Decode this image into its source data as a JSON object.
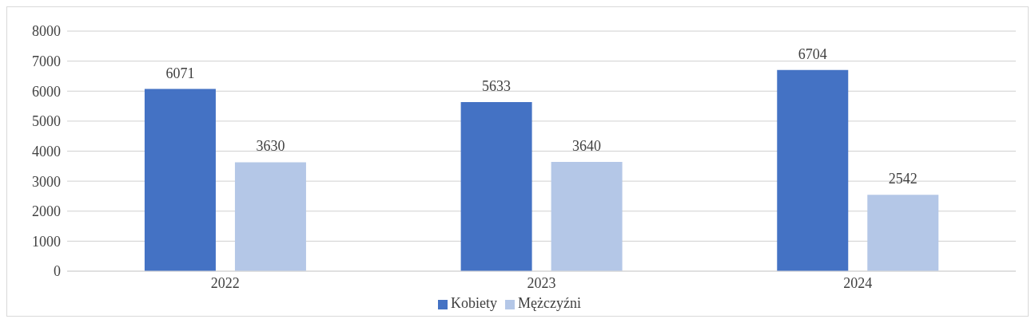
{
  "chart_data": {
    "type": "bar",
    "categories": [
      "2022",
      "2023",
      "2024"
    ],
    "series": [
      {
        "name": "Kobiety",
        "color": "#4472c4",
        "values": [
          6071,
          5633,
          6704
        ]
      },
      {
        "name": "Mężczyźni",
        "color": "#b4c7e7",
        "values": [
          3630,
          3640,
          2542
        ]
      }
    ],
    "ylim": [
      0,
      8000
    ],
    "yticks": [
      0,
      1000,
      2000,
      3000,
      4000,
      5000,
      6000,
      7000,
      8000
    ],
    "grid": "y",
    "legend": "bottom",
    "data_labels": true
  }
}
